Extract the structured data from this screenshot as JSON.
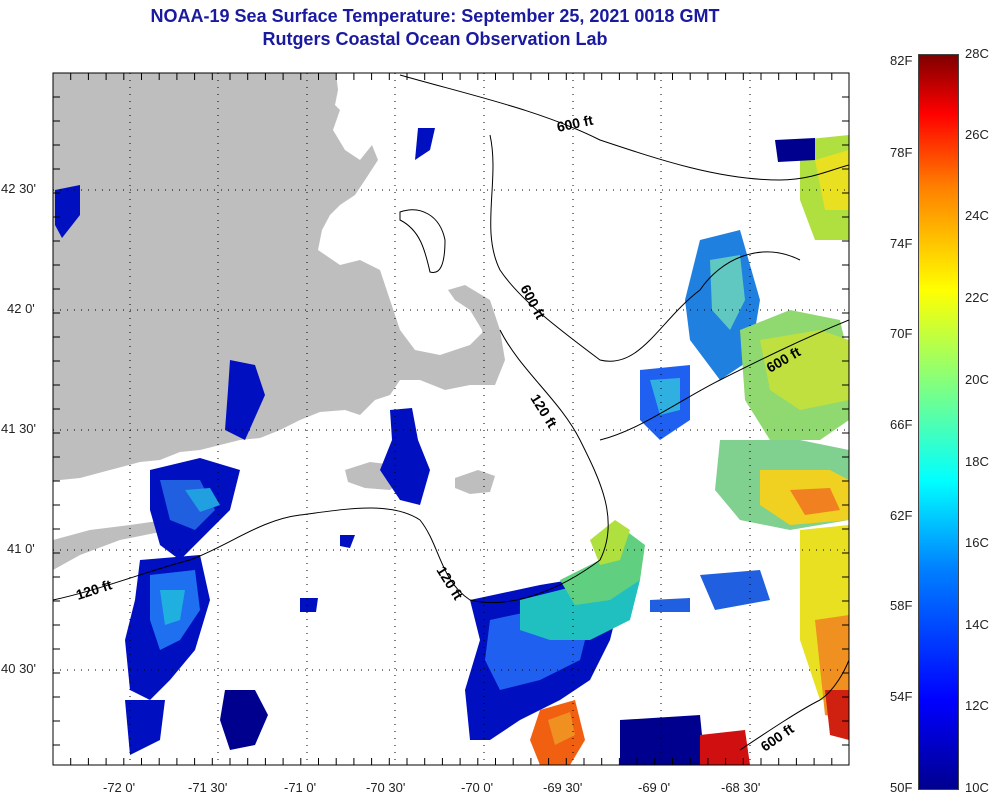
{
  "header": {
    "title": "NOAA-19 Sea Surface Temperature:  September 25, 2021 0018 GMT",
    "subtitle": "Rutgers Coastal Ocean Observation Lab"
  },
  "axes": {
    "lon_labels": [
      "-72 0'",
      "-71 30'",
      "-71 0'",
      "-70 30'",
      "-70 0'",
      "-69 30'",
      "-69 0'",
      "-68 30'"
    ],
    "lat_labels": [
      "42 30'",
      "42 0'",
      "41 30'",
      "41 0'",
      "40 30'"
    ]
  },
  "contours": {
    "labels": [
      "600 ft",
      "600 ft",
      "600 ft",
      "600 ft",
      "120 ft",
      "120 ft",
      "120 ft"
    ]
  },
  "colorbar": {
    "fahrenheit": [
      "82F",
      "78F",
      "74F",
      "70F",
      "66F",
      "62F",
      "58F",
      "54F",
      "50F"
    ],
    "celsius": [
      "28C",
      "26C",
      "24C",
      "22C",
      "20C",
      "18C",
      "16C",
      "14C",
      "12C",
      "10C"
    ],
    "range_c": [
      10,
      28
    ]
  },
  "colors": {
    "title": "#1a1aa0",
    "land": "#bebebe",
    "cold": "#00008f",
    "warm": "#7f0000"
  }
}
